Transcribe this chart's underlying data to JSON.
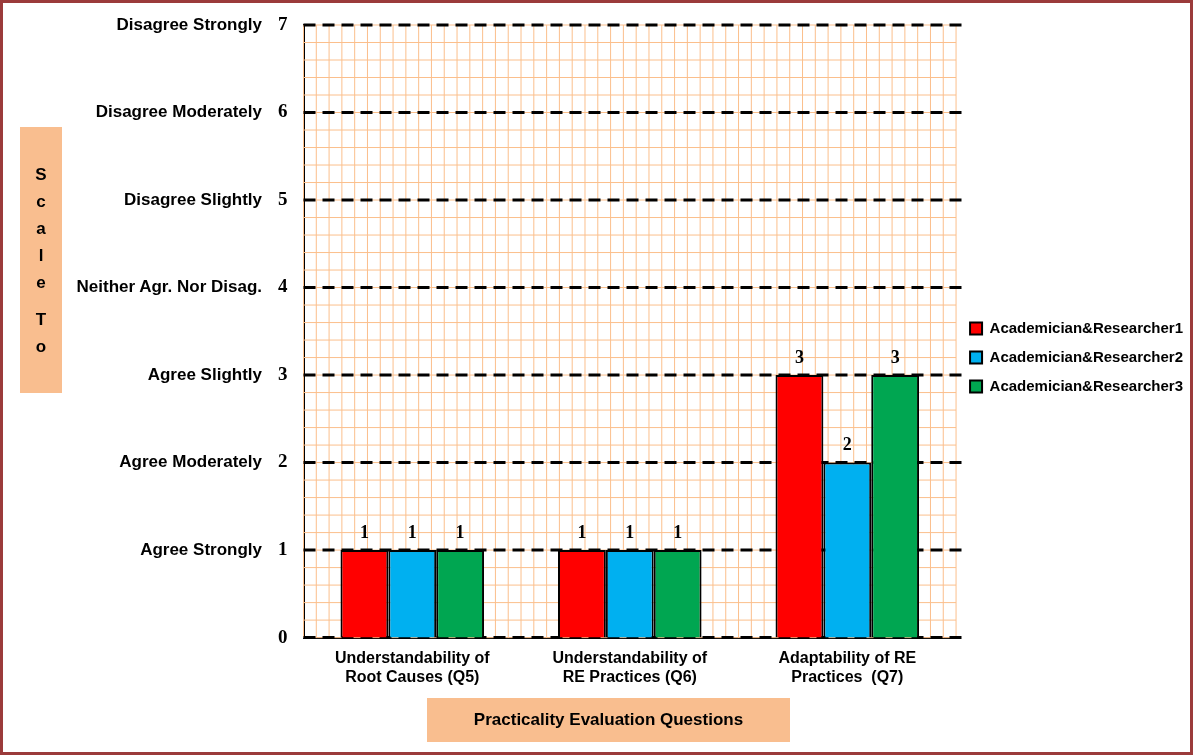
{
  "chart_data": {
    "type": "bar",
    "categories": [
      "Understandability of Root Causes (Q5)",
      "Understandability of RE Practices (Q6)",
      "Adaptability of RE Practices  (Q7)"
    ],
    "series": [
      {
        "name": "Academician&Researcher1",
        "color": "#ff0000",
        "values": [
          1,
          1,
          3
        ]
      },
      {
        "name": "Academician&Researcher2",
        "color": "#00b0f0",
        "values": [
          1,
          1,
          2
        ]
      },
      {
        "name": "Academician&Researcher3",
        "color": "#00a651",
        "values": [
          1,
          1,
          3
        ]
      }
    ],
    "ylim": [
      0,
      7
    ],
    "yticks": [
      0,
      1,
      2,
      3,
      4,
      5,
      6,
      7
    ],
    "xlabel": "Practicality Evaluation Questions",
    "annotations": [
      "Scale To",
      "Disagree Strongly",
      "Disagree Moderately",
      "Disagree Slightly",
      "Neither Agr. Nor Disag.",
      "Agree Slightly",
      "Agree Moderately",
      "Agree Strongly"
    ],
    "grid": true,
    "legend": "right",
    "data_labels": true
  }
}
